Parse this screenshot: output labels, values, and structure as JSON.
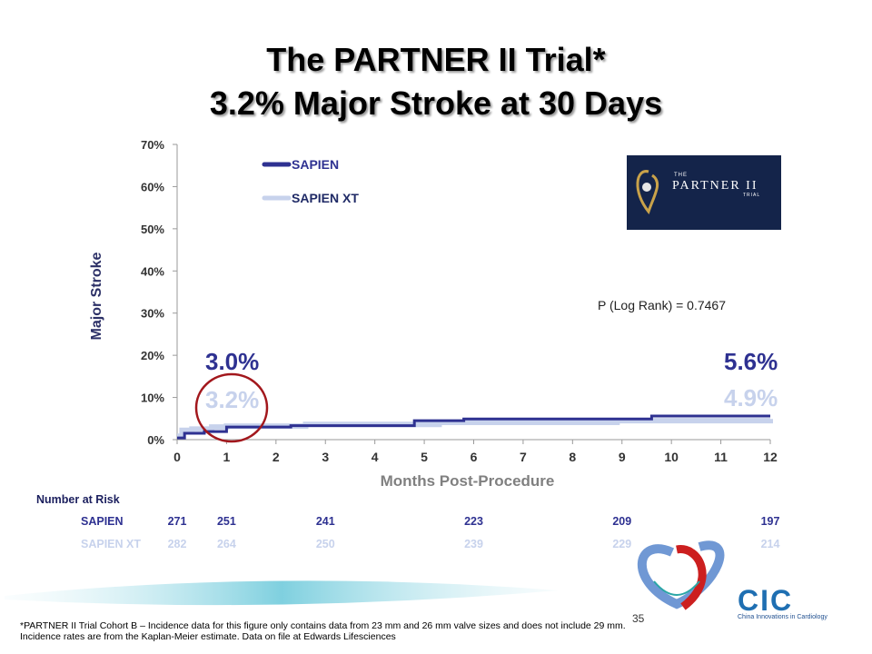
{
  "title_line1": "The PARTNER II Trial*",
  "title_line2": "3.2% Major Stroke at 30 Days",
  "logo": {
    "small": "THE",
    "main": "PARTNER II",
    "sub": "TRIAL"
  },
  "colors": {
    "sapien": "#2e3191",
    "sapien_xt": "#c7d2ec",
    "circle": "#a2171c",
    "axis_text": "#333333",
    "xlabel": "#808080"
  },
  "p_value": "P (Log Rank) = 0.7467",
  "annotations": {
    "sapien_30d": "3.0%",
    "sapien_xt_30d": "3.2%",
    "sapien_12m": "5.6%",
    "sapien_xt_12m": "4.9%"
  },
  "risk": {
    "header": "Number at Risk",
    "rows": [
      {
        "label": "SAPIEN",
        "values": [
          "271",
          "251",
          "241",
          "223",
          "209",
          "197"
        ]
      },
      {
        "label": "SAPIEN XT",
        "values": [
          "282",
          "264",
          "250",
          "239",
          "229",
          "214"
        ]
      }
    ],
    "months": [
      0,
      1,
      3,
      6,
      9,
      12
    ]
  },
  "footnote_line1": "*PARTNER II Trial Cohort B – Incidence data for this figure only contains data from 23 mm and 26 mm valve sizes and does not include 29 mm.",
  "footnote_line2": "Incidence rates are from the Kaplan-Meier estimate. Data on file at Edwards Lifesciences",
  "page_number": "35",
  "cic": {
    "text": "CIC",
    "sub": "China Innovations in Cardiology"
  },
  "chart_data": {
    "type": "line",
    "title": "",
    "xlabel": "Months Post-Procedure",
    "ylabel": "Major Stroke",
    "xlim": [
      0,
      12
    ],
    "ylim": [
      0,
      70
    ],
    "x_ticks": [
      0,
      1,
      2,
      3,
      4,
      5,
      6,
      7,
      8,
      9,
      10,
      11,
      12
    ],
    "y_ticks": [
      "0%",
      "10%",
      "20%",
      "30%",
      "40%",
      "50%",
      "60%",
      "70%"
    ],
    "y_tick_values": [
      0,
      10,
      20,
      30,
      40,
      50,
      60,
      70
    ],
    "grid": false,
    "legend": "top-left",
    "series": [
      {
        "name": "SAPIEN",
        "x": [
          0,
          0.15,
          0.55,
          1.0,
          2.3,
          4.8,
          5.8,
          9.6,
          12
        ],
        "y": [
          0.4,
          1.5,
          1.9,
          3.0,
          3.3,
          4.5,
          4.9,
          5.6,
          5.6
        ]
      },
      {
        "name": "SAPIEN XT",
        "x": [
          0,
          0.1,
          0.3,
          0.7,
          1.0,
          2.6,
          5.3,
          8.9,
          12
        ],
        "y": [
          0.8,
          2.2,
          2.5,
          3.0,
          3.2,
          3.6,
          4.1,
          4.5,
          4.9
        ]
      }
    ]
  }
}
